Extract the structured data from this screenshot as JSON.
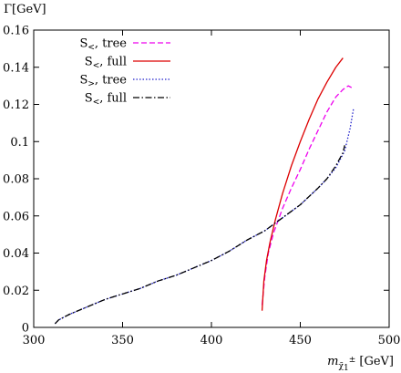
{
  "chart_data": {
    "type": "line",
    "ylabel": "Γ[GeV]",
    "xlabel": {
      "base": "m",
      "sub": "χ̃",
      "subsub": "1",
      "sup": "±",
      "unit": " [GeV]"
    },
    "xlim": [
      300,
      500
    ],
    "ylim": [
      0,
      0.16
    ],
    "x_ticks": [
      300,
      350,
      400,
      450,
      500
    ],
    "y_ticks": [
      0,
      0.02,
      0.04,
      0.06,
      0.08,
      0.1,
      0.12,
      0.14,
      0.16
    ],
    "x_tick_labels": [
      "300",
      "350",
      "400",
      "450",
      "500"
    ],
    "y_tick_labels": [
      "0",
      "0.02",
      "0.04",
      "0.06",
      "0.08",
      "0.1",
      "0.12",
      "0.14",
      "0.16"
    ],
    "grid": false,
    "legend_position": "top-left",
    "series": [
      {
        "label_main": "S",
        "label_sub": "<",
        "label_rest": ", tree",
        "color": "#ee00ee",
        "dash": "6,3",
        "points": [
          [
            428.5,
            0.012
          ],
          [
            430,
            0.027
          ],
          [
            432,
            0.04
          ],
          [
            435,
            0.051
          ],
          [
            440,
            0.064
          ],
          [
            445,
            0.075
          ],
          [
            450,
            0.085
          ],
          [
            455,
            0.096
          ],
          [
            460,
            0.106
          ],
          [
            465,
            0.116
          ],
          [
            470,
            0.124
          ],
          [
            474,
            0.128
          ],
          [
            477,
            0.13
          ],
          [
            479,
            0.129
          ]
        ]
      },
      {
        "label_main": "S",
        "label_sub": "<",
        "label_rest": ", full",
        "color": "#dd0000",
        "dash": "",
        "points": [
          [
            428.5,
            0.009
          ],
          [
            429.5,
            0.025
          ],
          [
            431,
            0.036
          ],
          [
            433,
            0.046
          ],
          [
            436,
            0.058
          ],
          [
            440,
            0.072
          ],
          [
            445,
            0.087
          ],
          [
            450,
            0.1
          ],
          [
            455,
            0.112
          ],
          [
            460,
            0.123
          ],
          [
            465,
            0.132
          ],
          [
            470,
            0.14
          ],
          [
            474,
            0.145
          ]
        ]
      },
      {
        "label_main": "S",
        "label_sub": ">",
        "label_rest": ", tree",
        "color": "#2222cc",
        "dash": "1.5,2",
        "points": [
          [
            312,
            0.002
          ],
          [
            314,
            0.004
          ],
          [
            320,
            0.007
          ],
          [
            330,
            0.011
          ],
          [
            340,
            0.015
          ],
          [
            350,
            0.018
          ],
          [
            360,
            0.021
          ],
          [
            370,
            0.025
          ],
          [
            380,
            0.028
          ],
          [
            390,
            0.032
          ],
          [
            400,
            0.036
          ],
          [
            410,
            0.041
          ],
          [
            420,
            0.047
          ],
          [
            430,
            0.052
          ],
          [
            440,
            0.059
          ],
          [
            450,
            0.066
          ],
          [
            460,
            0.075
          ],
          [
            465,
            0.08
          ],
          [
            470,
            0.086
          ],
          [
            475,
            0.095
          ],
          [
            478,
            0.107
          ],
          [
            480,
            0.118
          ]
        ]
      },
      {
        "label_main": "S",
        "label_sub": "<",
        "label_rest": ", full",
        "color": "#000000",
        "dash": "7,2.5,1.5,2.5",
        "points": [
          [
            312,
            0.002
          ],
          [
            314,
            0.004
          ],
          [
            320,
            0.007
          ],
          [
            330,
            0.011
          ],
          [
            340,
            0.015
          ],
          [
            350,
            0.018
          ],
          [
            360,
            0.021
          ],
          [
            370,
            0.025
          ],
          [
            380,
            0.028
          ],
          [
            390,
            0.032
          ],
          [
            400,
            0.036
          ],
          [
            410,
            0.041
          ],
          [
            420,
            0.047
          ],
          [
            430,
            0.052
          ],
          [
            440,
            0.059
          ],
          [
            450,
            0.066
          ],
          [
            460,
            0.075
          ],
          [
            465,
            0.08
          ],
          [
            470,
            0.087
          ],
          [
            474,
            0.094
          ],
          [
            475,
            0.098
          ]
        ]
      }
    ]
  }
}
